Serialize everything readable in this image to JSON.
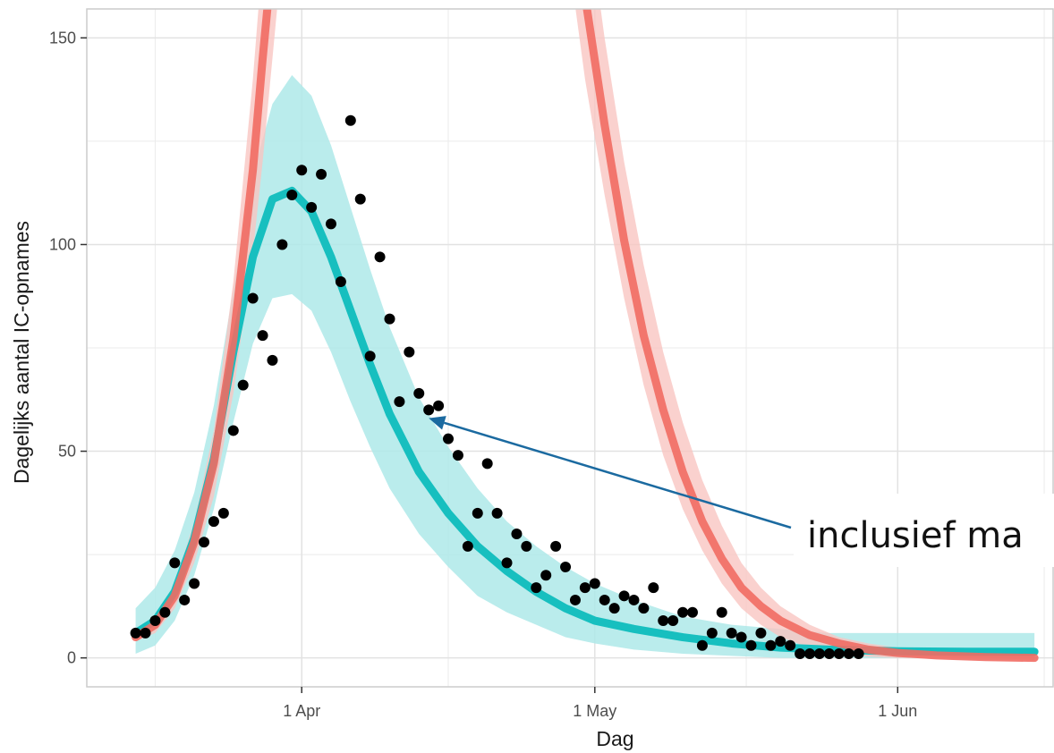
{
  "chart_data": {
    "type": "line",
    "title": "",
    "xlabel": "Dag",
    "ylabel": "Dagelijks aantal IC-opnames",
    "x_tick_labels": [
      "1 Apr",
      "1 May",
      "1 Jun"
    ],
    "x_ticks": [
      "2020-04-01",
      "2020-05-01",
      "2020-06-01"
    ],
    "xlim": [
      "2020-03-10",
      "2020-06-17"
    ],
    "y_ticks": [
      0,
      50,
      100,
      150
    ],
    "ylim": [
      -7,
      157
    ],
    "grid": true,
    "legend": "none",
    "annotation": {
      "text": "inclusief ma",
      "arrow_to": {
        "x": "2020-04-14",
        "y": 58
      }
    },
    "colors": {
      "cyan_line": "#17bfbf",
      "cyan_band": "#aee9e9",
      "red_line": "#f16b63",
      "red_band": "#f9c5c2",
      "points": "#000000",
      "arrow": "#1b6aa0",
      "grid": "#ebebeb",
      "panel_border": "#cccccc"
    },
    "series": [
      {
        "style": "line_with_band",
        "color": "cyan",
        "x": [
          "2020-03-15",
          "2020-03-17",
          "2020-03-19",
          "2020-03-21",
          "2020-03-23",
          "2020-03-25",
          "2020-03-27",
          "2020-03-29",
          "2020-03-31",
          "2020-04-02",
          "2020-04-04",
          "2020-04-06",
          "2020-04-08",
          "2020-04-10",
          "2020-04-13",
          "2020-04-16",
          "2020-04-19",
          "2020-04-22",
          "2020-04-25",
          "2020-04-28",
          "2020-05-01",
          "2020-05-05",
          "2020-05-10",
          "2020-05-15",
          "2020-05-20",
          "2020-05-25",
          "2020-06-01",
          "2020-06-08",
          "2020-06-15"
        ],
        "y": [
          6,
          9,
          16,
          29,
          48,
          74,
          97,
          111,
          113,
          108,
          97,
          84,
          71,
          59,
          45,
          35,
          27,
          21,
          16,
          12,
          9,
          7,
          5,
          3.5,
          2.5,
          2,
          1.6,
          1.5,
          1.5
        ],
        "lower": [
          1,
          3,
          9,
          20,
          36,
          57,
          76,
          87,
          88,
          84,
          74,
          62,
          51,
          41,
          30,
          22,
          15,
          11,
          8,
          5,
          3.5,
          2,
          1,
          0.5,
          0,
          0,
          0,
          0,
          0
        ],
        "upper": [
          12,
          17,
          26,
          40,
          61,
          89,
          117,
          134,
          141,
          136,
          124,
          109,
          94,
          80,
          63,
          51,
          41,
          33,
          27,
          22,
          18,
          14,
          10,
          8,
          7,
          6,
          6,
          6,
          6
        ]
      },
      {
        "style": "line_with_band",
        "color": "red",
        "x": [
          "2020-03-15",
          "2020-03-17",
          "2020-03-19",
          "2020-03-21",
          "2020-03-23",
          "2020-03-25",
          "2020-03-27",
          "2020-03-28",
          "2020-03-29",
          "2020-03-30"
        ],
        "y": [
          5,
          8,
          15,
          28,
          47,
          77,
          118,
          145,
          170,
          200
        ],
        "lower": [
          4,
          6,
          12,
          23,
          39,
          64,
          98,
          120,
          145,
          170
        ],
        "upper": [
          7,
          10,
          18,
          33,
          55,
          91,
          140,
          170,
          198,
          230
        ]
      },
      {
        "style": "line_with_band",
        "color": "red",
        "x": [
          "2020-04-28",
          "2020-04-30",
          "2020-05-02",
          "2020-05-04",
          "2020-05-06",
          "2020-05-08",
          "2020-05-10",
          "2020-05-12",
          "2020-05-14",
          "2020-05-16",
          "2020-05-18",
          "2020-05-20",
          "2020-05-23",
          "2020-05-26",
          "2020-05-29",
          "2020-06-01",
          "2020-06-05",
          "2020-06-10",
          "2020-06-15"
        ],
        "y": [
          200,
          160,
          129,
          101,
          78,
          60,
          45,
          33,
          24,
          17,
          12.5,
          9,
          5.5,
          3.5,
          2,
          1.2,
          0.6,
          0.2,
          0
        ],
        "lower": [
          175,
          140,
          112,
          87,
          66,
          49,
          36,
          26,
          18,
          12,
          8,
          5,
          2.5,
          1,
          0.3,
          0,
          0,
          0,
          -0.5
        ],
        "upper": [
          230,
          185,
          150,
          120,
          95,
          74,
          57,
          43,
          32,
          23,
          17,
          12.5,
          8,
          5,
          3.5,
          2.5,
          1.5,
          0.8,
          0.5
        ]
      },
      {
        "style": "points",
        "color": "black",
        "x": [
          "2020-03-15",
          "2020-03-16",
          "2020-03-17",
          "2020-03-18",
          "2020-03-19",
          "2020-03-20",
          "2020-03-21",
          "2020-03-22",
          "2020-03-23",
          "2020-03-24",
          "2020-03-25",
          "2020-03-26",
          "2020-03-27",
          "2020-03-28",
          "2020-03-29",
          "2020-03-30",
          "2020-03-31",
          "2020-04-01",
          "2020-04-02",
          "2020-04-03",
          "2020-04-04",
          "2020-04-05",
          "2020-04-06",
          "2020-04-07",
          "2020-04-08",
          "2020-04-09",
          "2020-04-10",
          "2020-04-11",
          "2020-04-12",
          "2020-04-13",
          "2020-04-14",
          "2020-04-15",
          "2020-04-16",
          "2020-04-17",
          "2020-04-18",
          "2020-04-19",
          "2020-04-20",
          "2020-04-21",
          "2020-04-22",
          "2020-04-23",
          "2020-04-24",
          "2020-04-25",
          "2020-04-26",
          "2020-04-27",
          "2020-04-28",
          "2020-04-29",
          "2020-04-30",
          "2020-05-01",
          "2020-05-02",
          "2020-05-03",
          "2020-05-04",
          "2020-05-05",
          "2020-05-06",
          "2020-05-07",
          "2020-05-08",
          "2020-05-09",
          "2020-05-10",
          "2020-05-11",
          "2020-05-12",
          "2020-05-13",
          "2020-05-14",
          "2020-05-15",
          "2020-05-16",
          "2020-05-17",
          "2020-05-18",
          "2020-05-19",
          "2020-05-20",
          "2020-05-21",
          "2020-05-22",
          "2020-05-23",
          "2020-05-24",
          "2020-05-25",
          "2020-05-26",
          "2020-05-27",
          "2020-05-28"
        ],
        "y": [
          6,
          6,
          9,
          11,
          23,
          14,
          18,
          28,
          33,
          35,
          55,
          66,
          87,
          78,
          72,
          100,
          112,
          118,
          109,
          117,
          105,
          91,
          130,
          111,
          73,
          97,
          82,
          62,
          74,
          64,
          60,
          61,
          53,
          49,
          27,
          35,
          47,
          35,
          23,
          30,
          27,
          17,
          20,
          27,
          22,
          14,
          17,
          18,
          14,
          12,
          15,
          14,
          12,
          17,
          9,
          9,
          11,
          11,
          3,
          6,
          11,
          6,
          5,
          3,
          6,
          3,
          4,
          3,
          1,
          1,
          1,
          1,
          1,
          1,
          1
        ]
      }
    ]
  }
}
